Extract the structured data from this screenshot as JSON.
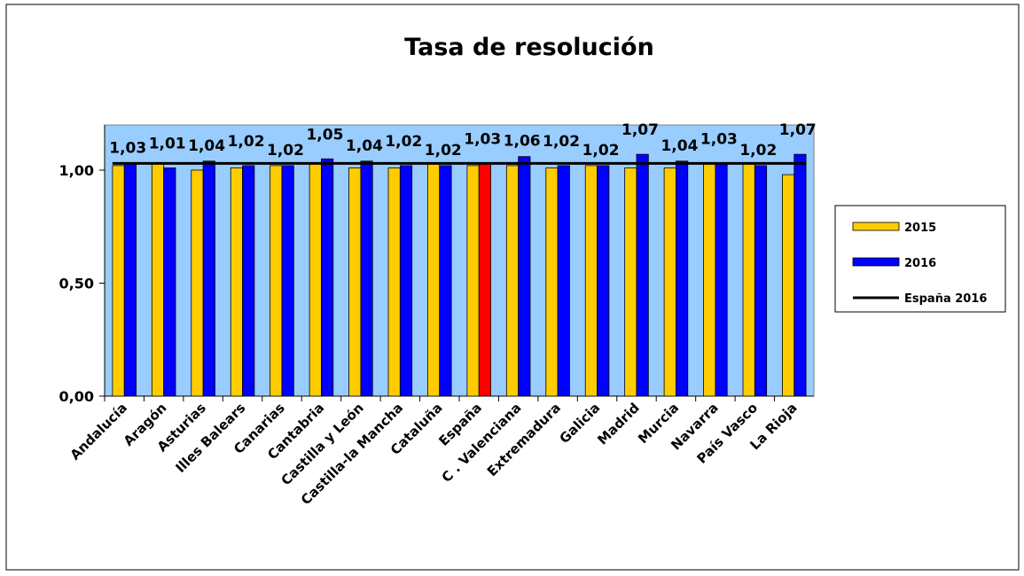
{
  "chart_data": {
    "type": "bar",
    "title": "Tasa de resolución",
    "categories": [
      "Andalucía",
      "Aragón",
      "Asturias",
      "Illes Balears",
      "Canarias",
      "Cantabria",
      "Castilla y León",
      "Castilla-la Mancha",
      "Cataluña",
      "España",
      "C . Valenciana",
      "Extremadura",
      "Galicia",
      "Madrid",
      "Murcia",
      "Navarra",
      "País Vasco",
      "La Rioja"
    ],
    "series": [
      {
        "name": "2015",
        "color": "#ffcc00",
        "values": [
          1.02,
          1.03,
          1.0,
          1.01,
          1.02,
          1.03,
          1.01,
          1.01,
          1.03,
          1.02,
          1.02,
          1.01,
          1.02,
          1.01,
          1.01,
          1.03,
          1.03,
          0.98
        ]
      },
      {
        "name": "2016",
        "color": "#0000ff",
        "values": [
          1.03,
          1.01,
          1.04,
          1.02,
          1.02,
          1.05,
          1.04,
          1.02,
          1.02,
          1.03,
          1.06,
          1.02,
          1.02,
          1.07,
          1.04,
          1.03,
          1.02,
          1.07
        ],
        "value_labels": [
          "1,03",
          "1,01",
          "1,04",
          "1,02",
          "1,02",
          "1,05",
          "1,04",
          "1,02",
          "1,02",
          "1,03",
          "1,06",
          "1,02",
          "1,02",
          "1,07",
          "1,04",
          "1,03",
          "1,02",
          "1,07"
        ],
        "highlight": {
          "category": "España",
          "color": "#ff0000"
        }
      }
    ],
    "reference_line": {
      "name": "España 2016",
      "value": 1.03,
      "color": "#000000"
    },
    "ylim": [
      0,
      1.2
    ],
    "yticks": [
      {
        "value": 0,
        "label": "0,00"
      },
      {
        "value": 0.5,
        "label": "0,50"
      },
      {
        "value": 1,
        "label": "1,00"
      }
    ],
    "plot_background": "#99ccff",
    "legend": "right"
  }
}
